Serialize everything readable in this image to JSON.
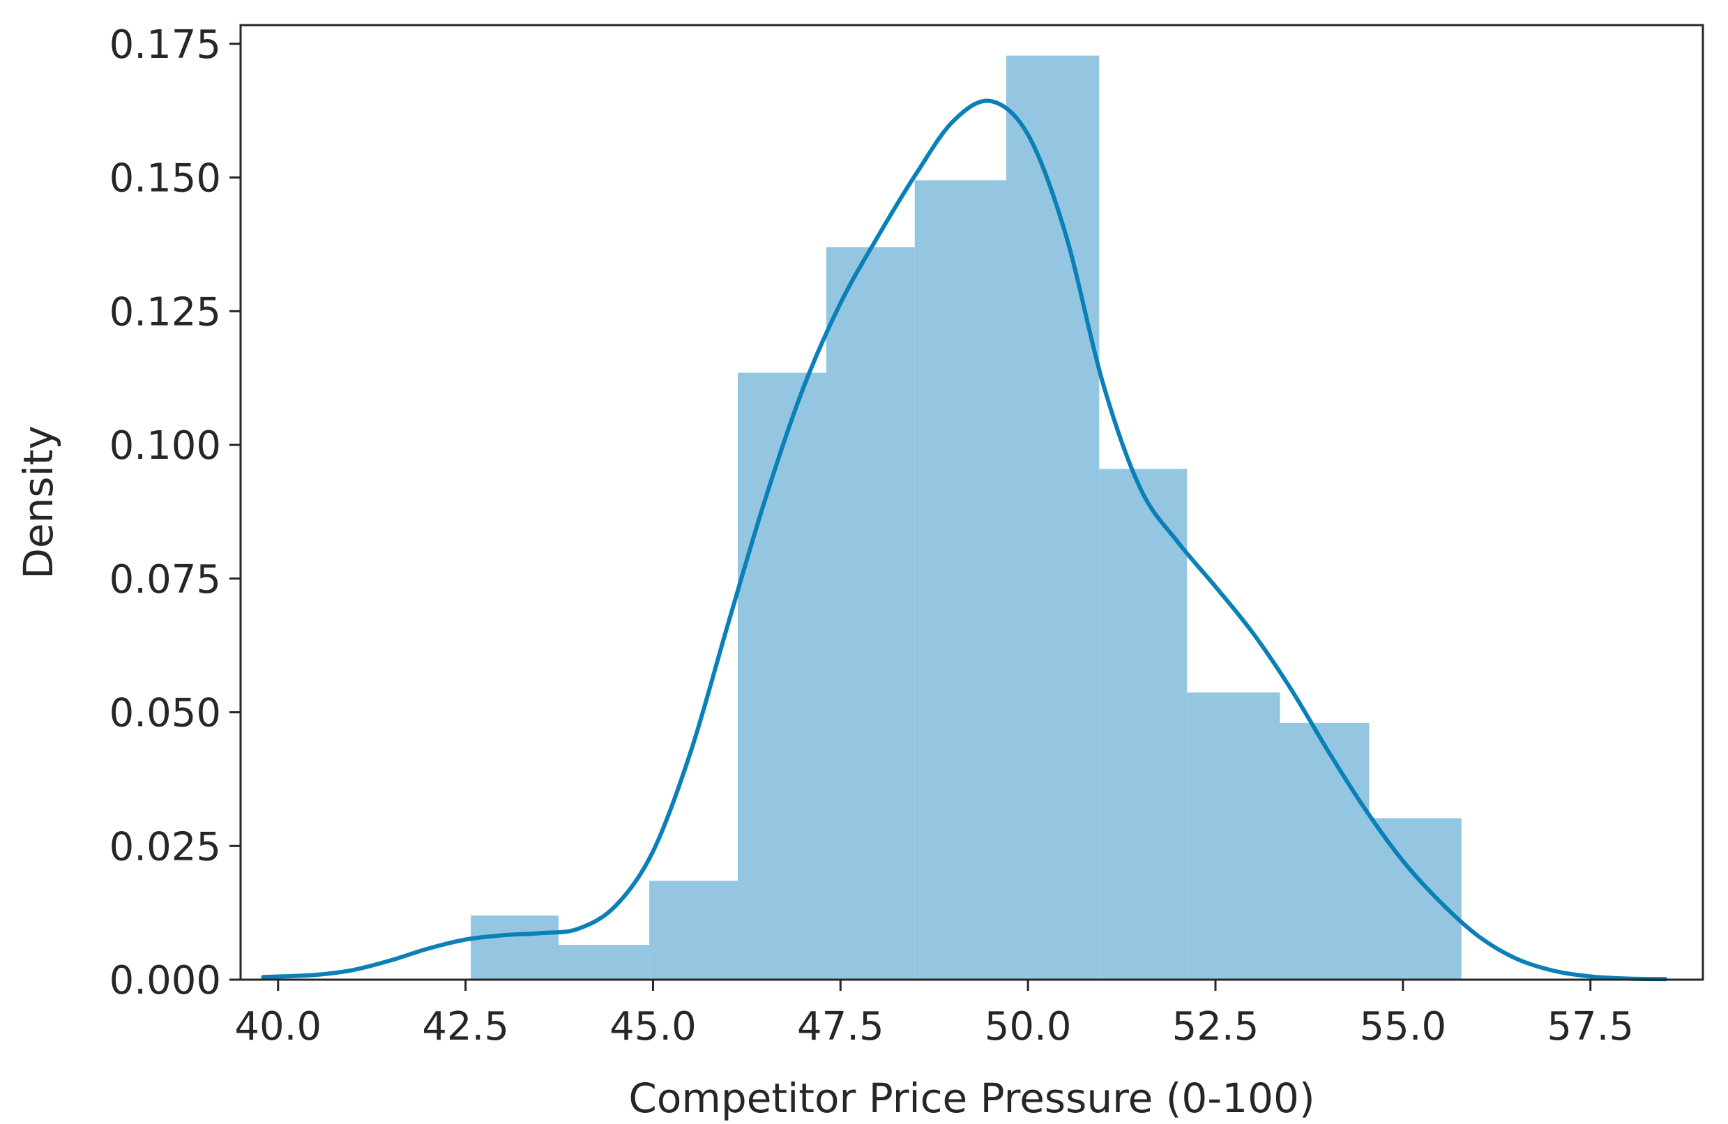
{
  "chart_data": {
    "type": "histogram",
    "xlabel": "Competitor Price Pressure (0-100)",
    "ylabel": "Density",
    "xlim": [
      39.5,
      59.0
    ],
    "ylim": [
      0,
      0.1785
    ],
    "x_ticks": [
      {
        "value": 40.0,
        "label": "40.0"
      },
      {
        "value": 42.5,
        "label": "42.5"
      },
      {
        "value": 45.0,
        "label": "45.0"
      },
      {
        "value": 47.5,
        "label": "47.5"
      },
      {
        "value": 50.0,
        "label": "50.0"
      },
      {
        "value": 52.5,
        "label": "52.5"
      },
      {
        "value": 55.0,
        "label": "55.0"
      },
      {
        "value": 57.5,
        "label": "57.5"
      }
    ],
    "y_ticks": [
      {
        "value": 0.0,
        "label": "0.000"
      },
      {
        "value": 0.025,
        "label": "0.025"
      },
      {
        "value": 0.05,
        "label": "0.050"
      },
      {
        "value": 0.075,
        "label": "0.075"
      },
      {
        "value": 0.1,
        "label": "0.100"
      },
      {
        "value": 0.125,
        "label": "0.125"
      },
      {
        "value": 0.15,
        "label": "0.150"
      },
      {
        "value": 0.175,
        "label": "0.175"
      }
    ],
    "grid": false,
    "bins": [
      {
        "x0": 42.57,
        "x1": 43.74,
        "density": 0.012
      },
      {
        "x0": 43.74,
        "x1": 44.95,
        "density": 0.0065
      },
      {
        "x0": 44.95,
        "x1": 46.13,
        "density": 0.0185
      },
      {
        "x0": 46.13,
        "x1": 47.31,
        "density": 0.1135
      },
      {
        "x0": 47.31,
        "x1": 48.49,
        "density": 0.137
      },
      {
        "x0": 48.49,
        "x1": 49.71,
        "density": 0.1495
      },
      {
        "x0": 49.71,
        "x1": 50.95,
        "density": 0.1728
      },
      {
        "x0": 50.95,
        "x1": 52.12,
        "density": 0.0955
      },
      {
        "x0": 52.12,
        "x1": 53.36,
        "density": 0.0537
      },
      {
        "x0": 53.36,
        "x1": 54.55,
        "density": 0.048
      },
      {
        "x0": 54.55,
        "x1": 55.78,
        "density": 0.0302
      }
    ],
    "kde": {
      "x": [
        39.8,
        40.5,
        41.0,
        41.5,
        42.0,
        42.5,
        43.0,
        43.5,
        44.0,
        44.5,
        45.0,
        45.5,
        46.0,
        46.5,
        47.0,
        47.5,
        48.0,
        48.5,
        49.0,
        49.5,
        50.0,
        50.5,
        51.0,
        51.5,
        52.0,
        52.5,
        53.0,
        53.5,
        54.0,
        54.5,
        55.0,
        55.5,
        56.0,
        56.5,
        57.0,
        57.5,
        58.0,
        58.5
      ],
      "y": [
        0.0005,
        0.0009,
        0.0018,
        0.0036,
        0.0058,
        0.0075,
        0.0083,
        0.0087,
        0.0095,
        0.0138,
        0.024,
        0.0425,
        0.0665,
        0.09,
        0.1105,
        0.1265,
        0.139,
        0.1505,
        0.1605,
        0.1643,
        0.158,
        0.1395,
        0.1115,
        0.0918,
        0.0818,
        0.0735,
        0.0648,
        0.0545,
        0.0428,
        0.0318,
        0.0222,
        0.0145,
        0.0082,
        0.004,
        0.0017,
        0.0006,
        0.0002,
        0.0001
      ]
    },
    "colors": {
      "bar_fill": "#94c6e1",
      "kde_line": "#0a80b8",
      "axis": "#262626"
    }
  }
}
